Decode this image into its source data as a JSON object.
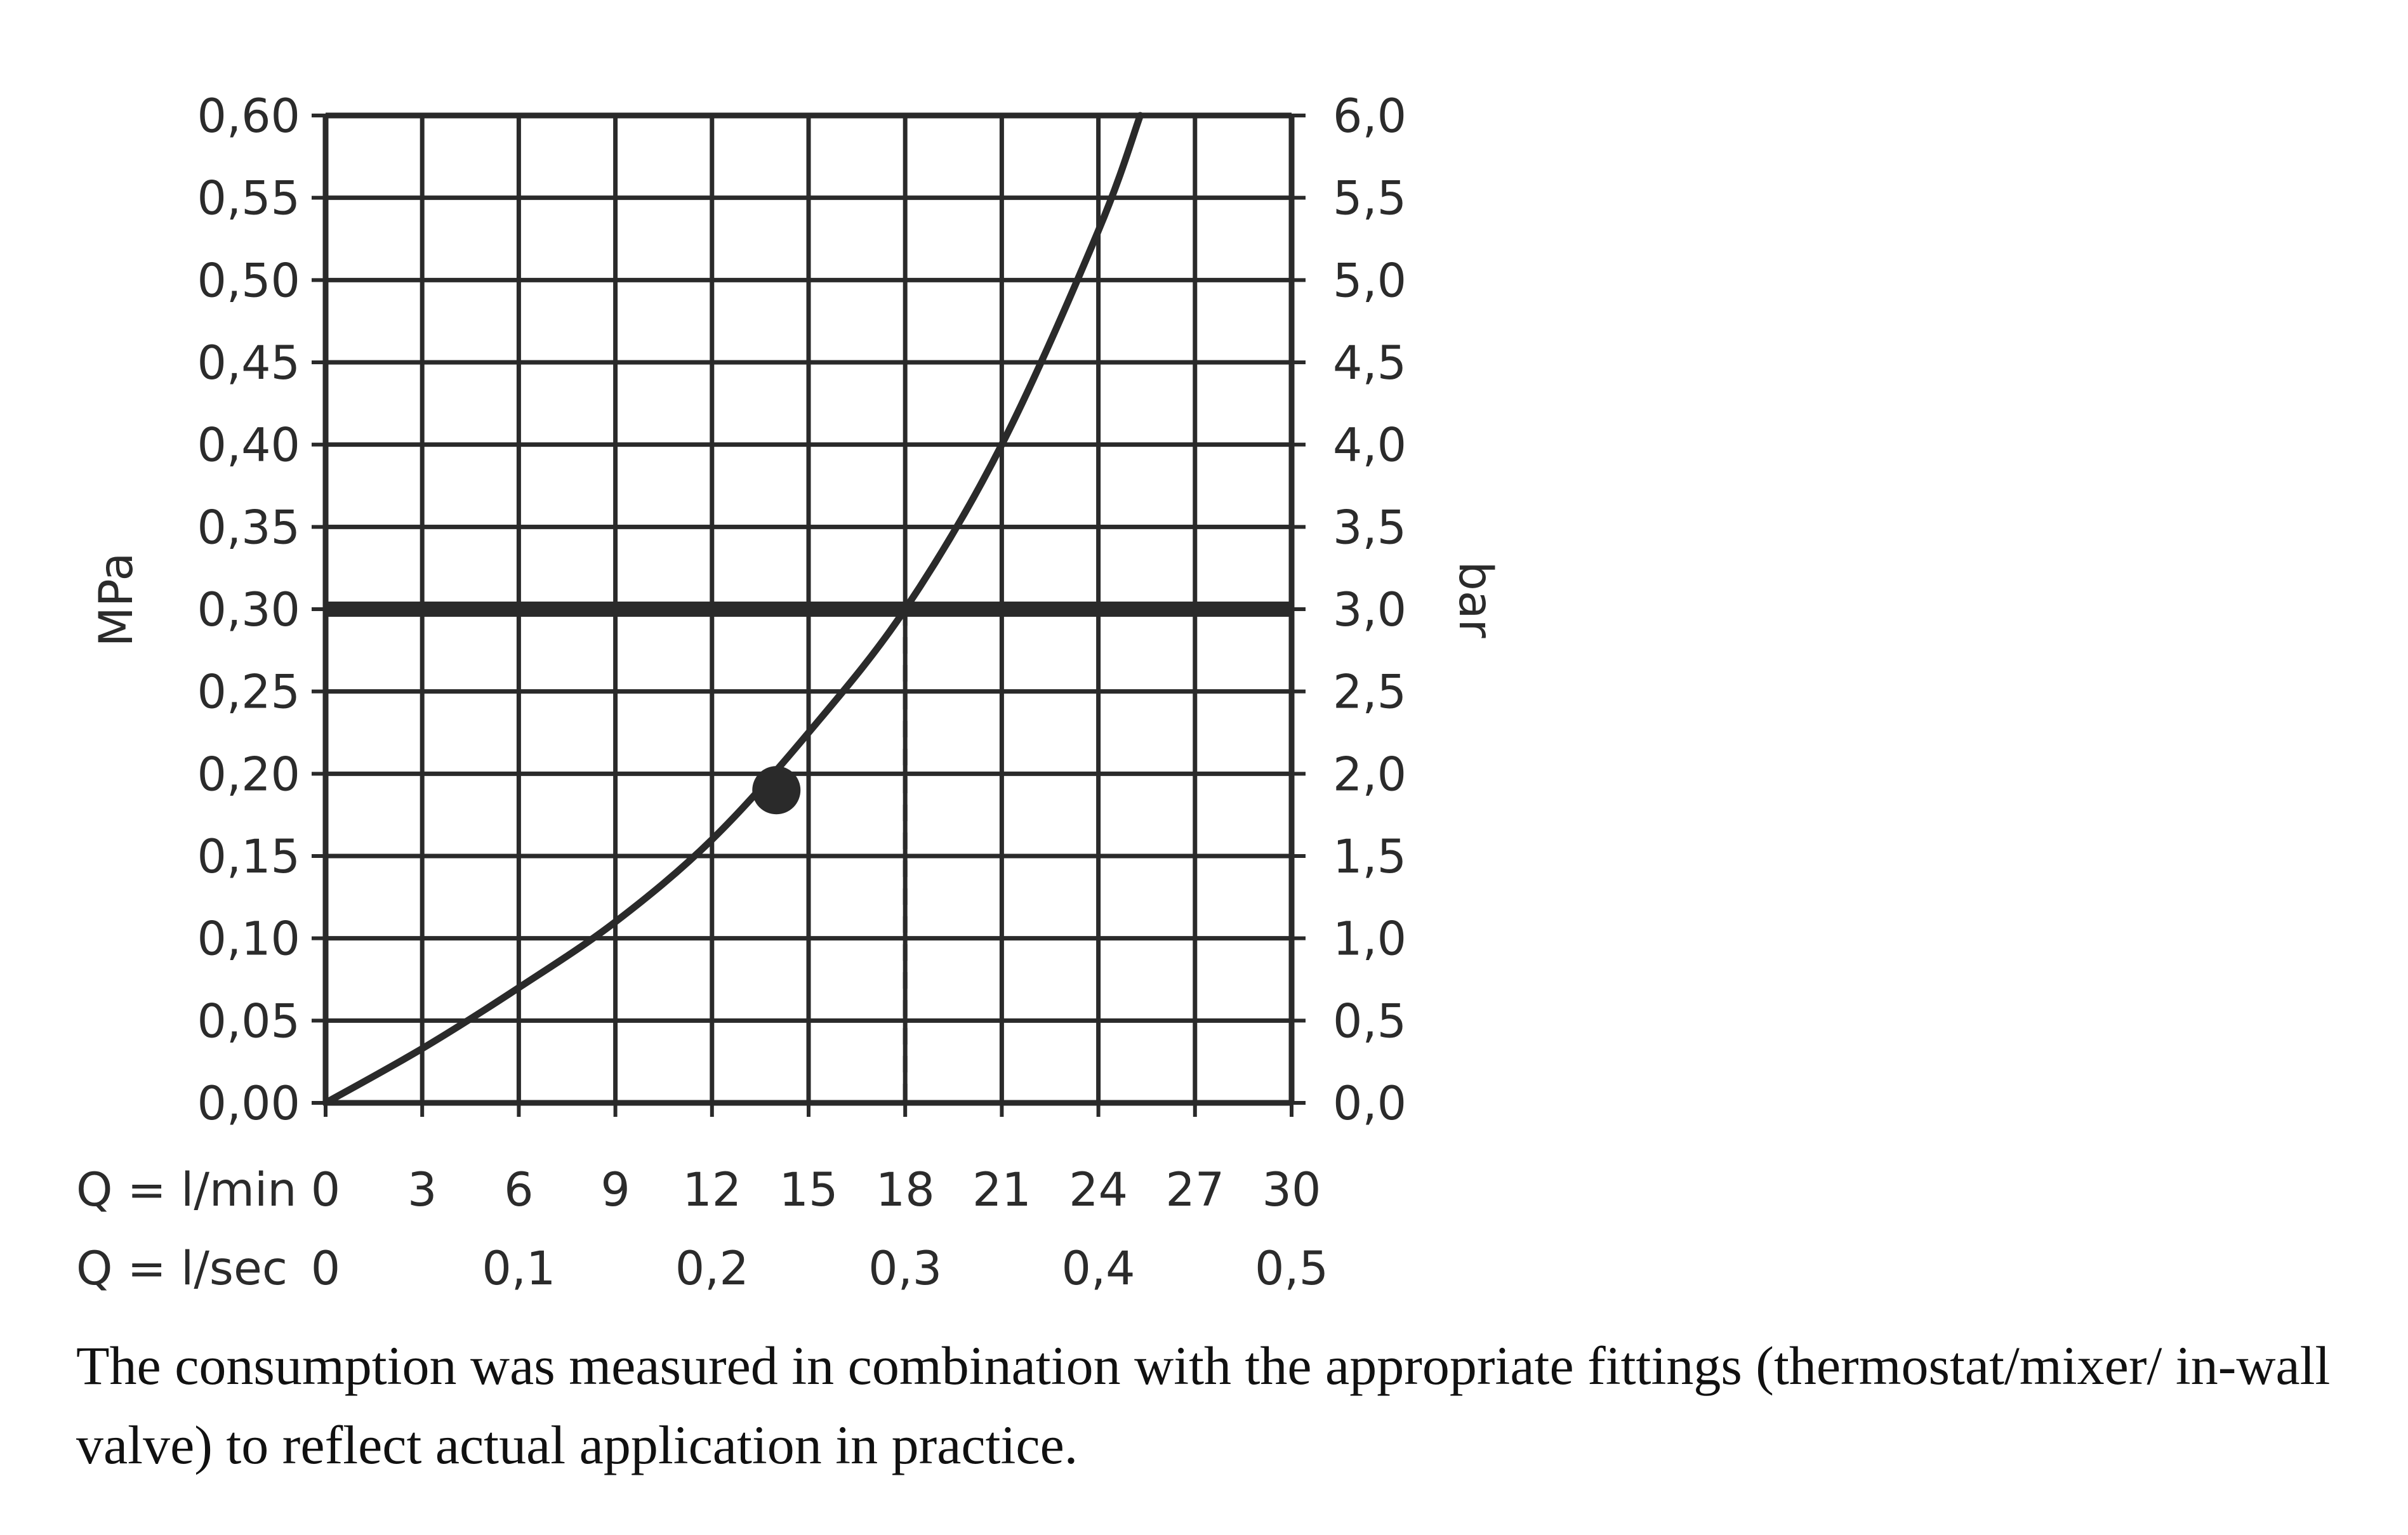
{
  "chart_data": {
    "type": "line",
    "xlabel_rows": [
      "Q = l/min",
      "Q = l/sec"
    ],
    "x_ticks_lmin": [
      "0",
      "3",
      "6",
      "9",
      "12",
      "15",
      "18",
      "21",
      "24",
      "27",
      "30"
    ],
    "x_ticks_lsec": [
      "0",
      "0,1",
      "0,2",
      "0,3",
      "0,4",
      "0,5"
    ],
    "xlim": [
      0,
      30
    ],
    "ylabel_left": "MPa",
    "ylabel_right": "bar",
    "y_ticks_left": [
      "0,00",
      "0,05",
      "0,10",
      "0,15",
      "0,20",
      "0,25",
      "0,30",
      "0,35",
      "0,40",
      "0,45",
      "0,50",
      "0,55",
      "0,60"
    ],
    "y_ticks_right": [
      "0,0",
      "0,5",
      "1,0",
      "1,5",
      "2,0",
      "2,5",
      "3,0",
      "3,5",
      "4,0",
      "4,5",
      "5,0",
      "5,5",
      "6,0"
    ],
    "ylim": [
      0,
      0.6
    ],
    "grid": true,
    "series": [
      {
        "x": [
          0,
          3,
          6,
          9,
          12,
          15,
          18,
          21,
          24,
          25.3
        ],
        "y": [
          0.0,
          0.033,
          0.07,
          0.11,
          0.16,
          0.225,
          0.3,
          0.4,
          0.53,
          0.6
        ]
      }
    ],
    "reference_line": {
      "y": 0.3
    },
    "drop_line": {
      "x": 18,
      "y": 0.3
    },
    "marker": {
      "x": 14,
      "y": 0.19
    },
    "colors": {
      "curve": "#2a2a2a",
      "grid": "#2a2a2a",
      "reference": "#2a2a2a"
    }
  },
  "caption": "The consumption was measured in combination with the appropriate fittings (thermostat/mixer/ in-wall valve) to reflect actual application in practice."
}
